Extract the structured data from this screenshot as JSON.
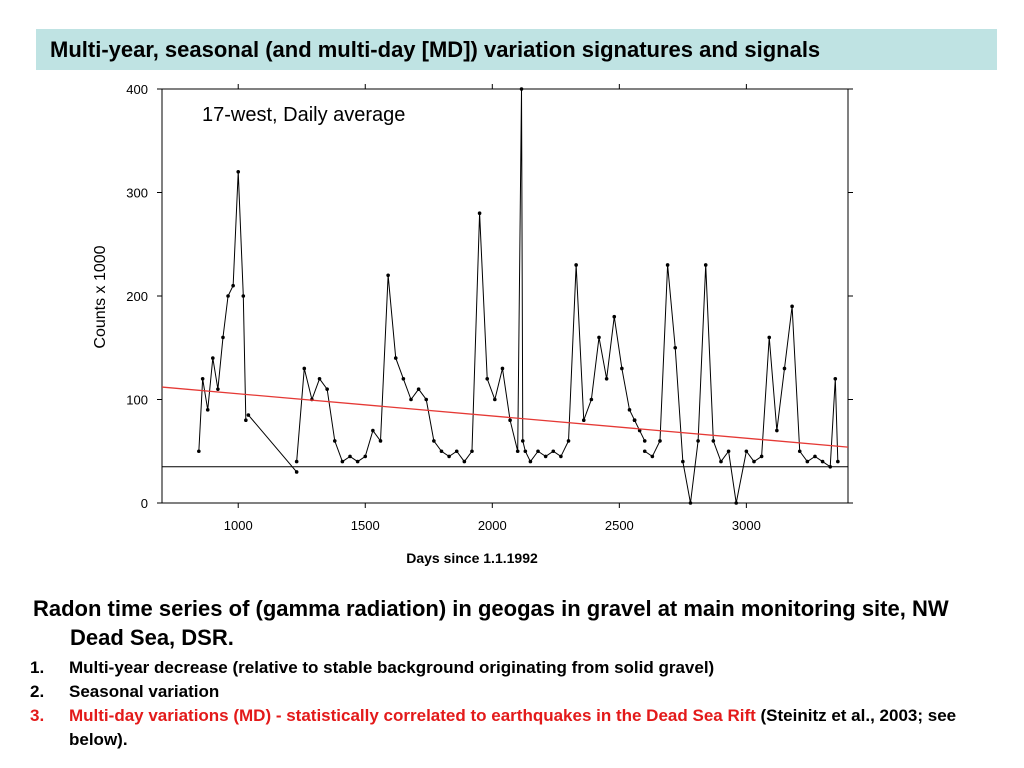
{
  "slide_title": "Multi-year, seasonal (and multi-day [MD]) variation signatures and signals",
  "chart_data": {
    "type": "line",
    "title": "17-west, Daily average",
    "xlabel": "Days since 1.1.1992",
    "ylabel": "Counts x 1000",
    "xlim": [
      700,
      3400
    ],
    "ylim": [
      0,
      400
    ],
    "xticks": [
      1000,
      1500,
      2000,
      2500,
      3000
    ],
    "yticks": [
      0,
      100,
      200,
      300,
      400
    ],
    "background_level": 35,
    "trend_line": {
      "x": [
        700,
        3400
      ],
      "y": [
        112,
        54
      ],
      "color": "#e53935"
    },
    "segments": [
      {
        "x": [
          845,
          860,
          880,
          900,
          920,
          940,
          960,
          980,
          1000,
          1020,
          1030
        ],
        "y": [
          50,
          120,
          90,
          140,
          110,
          160,
          200,
          210,
          320,
          200,
          80
        ]
      },
      {
        "x": [
          1040,
          1230
        ],
        "y": [
          85,
          30
        ]
      },
      {
        "x": [
          1230,
          1260,
          1290,
          1320,
          1350,
          1380,
          1410,
          1440,
          1470,
          1500,
          1530,
          1560,
          1590,
          1620,
          1650,
          1680,
          1710,
          1740,
          1770,
          1800,
          1830,
          1860,
          1890,
          1920,
          1950,
          1980,
          2010,
          2040,
          2070,
          2100,
          2115,
          2120,
          2130,
          2150,
          2180,
          2210,
          2240,
          2270,
          2300,
          2330,
          2360,
          2390,
          2420,
          2450,
          2480,
          2510,
          2540,
          2560
        ],
        "y": [
          40,
          130,
          100,
          120,
          110,
          60,
          40,
          45,
          40,
          45,
          70,
          60,
          220,
          140,
          120,
          100,
          110,
          100,
          60,
          50,
          45,
          50,
          40,
          50,
          280,
          120,
          100,
          130,
          80,
          50,
          400,
          60,
          50,
          40,
          50,
          45,
          50,
          45,
          60,
          230,
          80,
          100,
          160,
          120,
          180,
          130,
          90,
          80
        ]
      },
      {
        "x": [
          2560,
          2580,
          2600
        ],
        "y": [
          80,
          70,
          60
        ]
      },
      {
        "x": [
          2600,
          2630,
          2660,
          2690,
          2720,
          2750,
          2780,
          2810,
          2840,
          2870,
          2900,
          2930,
          2960,
          3000,
          3030,
          3060,
          3090,
          3120,
          3150,
          3180,
          3210,
          3240,
          3270,
          3300,
          3330,
          3350,
          3360
        ],
        "y": [
          50,
          45,
          60,
          230,
          150,
          40,
          0,
          60,
          230,
          60,
          40,
          50,
          0,
          50,
          40,
          45,
          160,
          70,
          130,
          190,
          50,
          40,
          45,
          40,
          35,
          120,
          40
        ]
      }
    ]
  },
  "description": {
    "heading": "Radon  time series of (gamma radiation) in geogas in gravel at main monitoring site, NW Dead Sea, DSR.",
    "items": [
      {
        "num": "1.",
        "text": "Multi-year decrease (relative to stable background originating from solid gravel)",
        "extra": ""
      },
      {
        "num": "2.",
        "text": "Seasonal variation",
        "extra": ""
      },
      {
        "num": "3.",
        "text": "Multi-day variations (MD) - statistically correlated to earthquakes in the Dead Sea Rift",
        "extra": "(Steinitz et al., 2003; see below)."
      }
    ]
  }
}
